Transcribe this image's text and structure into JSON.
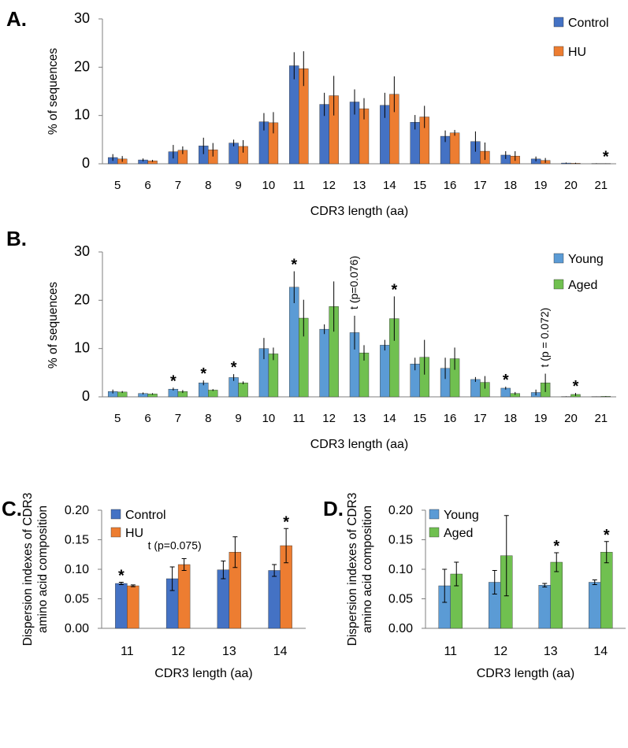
{
  "chart_data": [
    {
      "panel": "A.",
      "type": "bar",
      "xlabel": "CDR3 length (aa)",
      "ylabel": "% of sequences",
      "ylim": [
        0,
        30
      ],
      "yticks": [
        "0",
        "10",
        "20",
        "30"
      ],
      "categories": [
        "5",
        "6",
        "7",
        "8",
        "9",
        "10",
        "11",
        "12",
        "13",
        "14",
        "15",
        "16",
        "17",
        "18",
        "19",
        "20",
        "21"
      ],
      "series": [
        {
          "name": "Control",
          "color": "#4472C4",
          "values": [
            1.3,
            0.8,
            2.5,
            3.7,
            4.3,
            8.7,
            20.3,
            12.3,
            12.8,
            12.1,
            8.6,
            5.7,
            4.6,
            1.8,
            1.0,
            0.15,
            0.05
          ],
          "errors": [
            0.7,
            0.3,
            1.4,
            1.7,
            0.7,
            1.8,
            2.8,
            2.4,
            2.6,
            2.6,
            1.5,
            1.2,
            2.1,
            0.8,
            0.5,
            0.1,
            0.05
          ]
        },
        {
          "name": "HU",
          "color": "#ED7D31",
          "values": [
            1.0,
            0.6,
            2.8,
            2.9,
            3.6,
            8.5,
            19.7,
            14.1,
            11.4,
            14.4,
            9.7,
            6.4,
            2.6,
            1.6,
            0.7,
            0.1,
            0.05
          ],
          "errors": [
            0.6,
            0.2,
            0.8,
            1.4,
            1.3,
            2.2,
            3.6,
            4.1,
            2.2,
            3.7,
            2.3,
            0.6,
            1.8,
            1.0,
            0.5,
            0.1,
            0.03
          ]
        }
      ],
      "annotations": [
        {
          "category": "21",
          "series": "HU",
          "text": "*"
        }
      ]
    },
    {
      "panel": "B.",
      "type": "bar",
      "xlabel": "CDR3 length (aa)",
      "ylabel": "% of sequences",
      "ylim": [
        0,
        30
      ],
      "yticks": [
        "0",
        "10",
        "20",
        "30"
      ],
      "categories": [
        "5",
        "6",
        "7",
        "8",
        "9",
        "10",
        "11",
        "12",
        "13",
        "14",
        "15",
        "16",
        "17",
        "18",
        "19",
        "20",
        "21"
      ],
      "series": [
        {
          "name": "Young",
          "color": "#5B9BD5",
          "values": [
            1.1,
            0.7,
            1.6,
            2.9,
            4.0,
            10.0,
            22.7,
            14.0,
            13.3,
            10.7,
            6.8,
            5.9,
            3.6,
            1.8,
            0.9,
            0.05,
            0.05
          ],
          "errors": [
            0.4,
            0.2,
            0.3,
            0.5,
            0.7,
            2.2,
            3.3,
            1.0,
            3.5,
            1.1,
            1.3,
            2.2,
            0.5,
            0.3,
            0.6,
            0.05,
            0.03
          ]
        },
        {
          "name": "Aged",
          "color": "#70C050",
          "values": [
            1.0,
            0.6,
            1.1,
            1.4,
            2.9,
            8.9,
            16.3,
            18.7,
            9.1,
            16.2,
            8.2,
            7.9,
            3.0,
            0.7,
            2.9,
            0.5,
            0.1
          ],
          "errors": [
            0.2,
            0.15,
            0.3,
            0.2,
            0.3,
            1.3,
            3.8,
            5.2,
            1.6,
            4.6,
            3.6,
            2.3,
            1.3,
            0.3,
            1.9,
            0.3,
            0.05
          ]
        }
      ],
      "annotations": [
        {
          "category": "7",
          "series": "Young",
          "text": "*"
        },
        {
          "category": "8",
          "series": "Young",
          "text": "*"
        },
        {
          "category": "9",
          "series": "Young",
          "text": "*"
        },
        {
          "category": "11",
          "series": "Young",
          "text": "*"
        },
        {
          "category": "14",
          "series": "Aged",
          "text": "*"
        },
        {
          "category": "18",
          "series": "Young",
          "text": "*"
        },
        {
          "category": "20",
          "series": "Aged",
          "text": "*"
        },
        {
          "category": "13",
          "series": "Young",
          "text": "t (p=0.076)",
          "rotated": true
        },
        {
          "category": "19",
          "series": "Aged",
          "text": "t (p = 0.072)",
          "rotated": true
        }
      ]
    },
    {
      "panel": "C.",
      "type": "bar",
      "xlabel": "CDR3 length (aa)",
      "ylabel": "Dispersion indexes of CDR3\namino acid composition",
      "ylabel_lines": [
        "Dispersion indexes of CDR3",
        "amino acid composition"
      ],
      "ylim": [
        0,
        0.2
      ],
      "yticks": [
        "0.00",
        "0.05",
        "0.10",
        "0.15",
        "0.20"
      ],
      "categories": [
        "11",
        "12",
        "13",
        "14"
      ],
      "series": [
        {
          "name": "Control",
          "color": "#4472C4",
          "values": [
            0.076,
            0.084,
            0.099,
            0.098
          ],
          "errors": [
            0.002,
            0.02,
            0.015,
            0.01
          ]
        },
        {
          "name": "HU",
          "color": "#ED7D31",
          "values": [
            0.072,
            0.108,
            0.129,
            0.14
          ],
          "errors": [
            0.0015,
            0.01,
            0.026,
            0.029
          ]
        }
      ],
      "annotations": [
        {
          "category": "11",
          "series": "Control",
          "text": "*"
        },
        {
          "category": "14",
          "series": "HU",
          "text": "*"
        },
        {
          "category": "12",
          "series": "HU",
          "text": "t (p=0.075)"
        }
      ]
    },
    {
      "panel": "D.",
      "type": "bar",
      "xlabel": "CDR3 length (aa)",
      "ylabel": "Dispersion indexes of CDR3\namino acid composition",
      "ylabel_lines": [
        "Dispersion indexes of CDR3",
        "amino acid composition"
      ],
      "ylim": [
        0,
        0.2
      ],
      "yticks": [
        "0.00",
        "0.05",
        "0.10",
        "0.15",
        "0.20"
      ],
      "categories": [
        "11",
        "12",
        "13",
        "14"
      ],
      "series": [
        {
          "name": "Young",
          "color": "#5B9BD5",
          "values": [
            0.072,
            0.078,
            0.073,
            0.078
          ],
          "errors": [
            0.028,
            0.02,
            0.003,
            0.004
          ]
        },
        {
          "name": "Aged",
          "color": "#70C050",
          "values": [
            0.092,
            0.123,
            0.112,
            0.129
          ],
          "errors": [
            0.02,
            0.068,
            0.016,
            0.018
          ]
        }
      ],
      "annotations": [
        {
          "category": "13",
          "series": "Aged",
          "text": "*"
        },
        {
          "category": "14",
          "series": "Aged",
          "text": "*"
        }
      ]
    }
  ]
}
